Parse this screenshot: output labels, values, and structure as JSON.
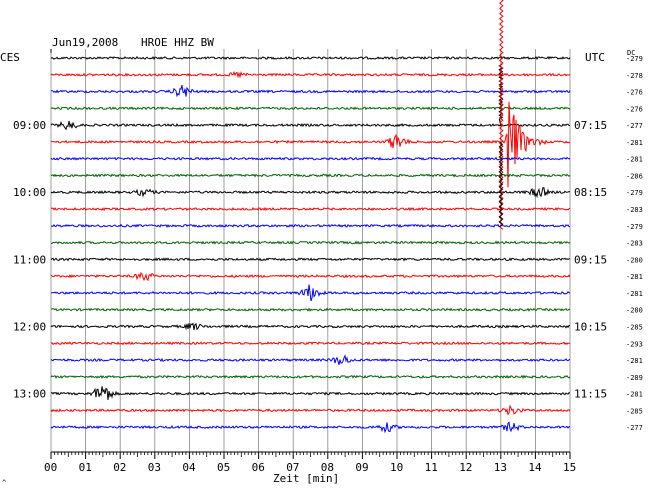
{
  "header": {
    "date": "Jun19,2008",
    "station": "HROE HHZ BW",
    "left_label": "CES",
    "right_label": "UTC",
    "dc_label": "DC"
  },
  "chart_data": {
    "type": "line",
    "title": "Jun19,2008   HROE HHZ BW",
    "xlabel": "Zeit [min]",
    "xlim": [
      0,
      15
    ],
    "x_ticks": [
      "00",
      "01",
      "02",
      "03",
      "04",
      "05",
      "06",
      "07",
      "08",
      "09",
      "10",
      "11",
      "12",
      "13",
      "14",
      "15"
    ],
    "grid": true,
    "trace_colors": [
      "#000000",
      "#ff0000",
      "#0000ff",
      "#006400"
    ],
    "left_time_labels": [
      {
        "trace": 4,
        "label": "09:00"
      },
      {
        "trace": 8,
        "label": "10:00"
      },
      {
        "trace": 12,
        "label": "11:00"
      },
      {
        "trace": 16,
        "label": "12:00"
      },
      {
        "trace": 20,
        "label": "13:00"
      }
    ],
    "right_time_labels": [
      {
        "trace": 4,
        "label": "07:15"
      },
      {
        "trace": 8,
        "label": "08:15"
      },
      {
        "trace": 12,
        "label": "09:15"
      },
      {
        "trace": 16,
        "label": "10:15"
      },
      {
        "trace": 20,
        "label": "11:15"
      }
    ],
    "dc_offsets": [
      "-279",
      "-278",
      "-276",
      "-276",
      "-277",
      "-281",
      "-281",
      "-286",
      "-279",
      "-283",
      "-279",
      "-283",
      "-280",
      "-281",
      "-281",
      "-280",
      "-285",
      "-293",
      "-281",
      "-289",
      "-281",
      "-285",
      "-277"
    ],
    "events": [
      {
        "trace": 1,
        "minute": 5.4,
        "amplitude": 2
      },
      {
        "trace": 2,
        "minute": 3.8,
        "amplitude": 6
      },
      {
        "trace": 4,
        "minute": 0.5,
        "amplitude": 4
      },
      {
        "trace": 5,
        "minute": 10.0,
        "amplitude": 8
      },
      {
        "trace": 5,
        "minute": 13.2,
        "amplitude": 60
      },
      {
        "trace": 8,
        "minute": 2.7,
        "amplitude": 3
      },
      {
        "trace": 8,
        "minute": 14.1,
        "amplitude": 5
      },
      {
        "trace": 13,
        "minute": 2.7,
        "amplitude": 4
      },
      {
        "trace": 14,
        "minute": 7.5,
        "amplitude": 8
      },
      {
        "trace": 16,
        "minute": 4.1,
        "amplitude": 3
      },
      {
        "trace": 18,
        "minute": 8.4,
        "amplitude": 5
      },
      {
        "trace": 20,
        "minute": 1.5,
        "amplitude": 10
      },
      {
        "trace": 21,
        "minute": 13.3,
        "amplitude": 4
      },
      {
        "trace": 22,
        "minute": 9.7,
        "amplitude": 4
      },
      {
        "trace": 22,
        "minute": 13.3,
        "amplitude": 4
      }
    ],
    "main_event": {
      "minute": 13.0,
      "trace": 4,
      "peak_trace": 5
    }
  },
  "footer": {
    "corner_mark": "^"
  }
}
